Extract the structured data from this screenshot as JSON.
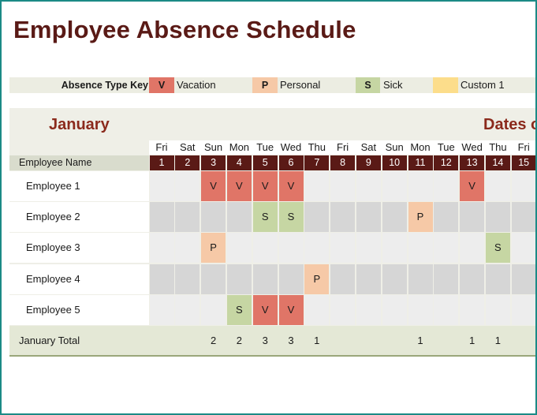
{
  "title": "Employee Absence Schedule",
  "key": {
    "label": "Absence Type Key",
    "items": [
      {
        "code": "V",
        "name": "Vacation",
        "color": "#e07567"
      },
      {
        "code": "P",
        "name": "Personal",
        "color": "#f6c9a7"
      },
      {
        "code": "S",
        "name": "Sick",
        "color": "#c6d6a3"
      },
      {
        "code": "",
        "name": "Custom 1",
        "color": "#fcdd8b"
      }
    ]
  },
  "calendar": {
    "month": "January",
    "dates_heading": "Dates o",
    "employee_header": "Employee Name",
    "days": [
      {
        "dow": "Fri",
        "num": "1"
      },
      {
        "dow": "Sat",
        "num": "2"
      },
      {
        "dow": "Sun",
        "num": "3"
      },
      {
        "dow": "Mon",
        "num": "4"
      },
      {
        "dow": "Tue",
        "num": "5"
      },
      {
        "dow": "Wed",
        "num": "6"
      },
      {
        "dow": "Thu",
        "num": "7"
      },
      {
        "dow": "Fri",
        "num": "8"
      },
      {
        "dow": "Sat",
        "num": "9"
      },
      {
        "dow": "Sun",
        "num": "10"
      },
      {
        "dow": "Mon",
        "num": "11"
      },
      {
        "dow": "Tue",
        "num": "12"
      },
      {
        "dow": "Wed",
        "num": "13"
      },
      {
        "dow": "Thu",
        "num": "14"
      },
      {
        "dow": "Fri",
        "num": "15"
      }
    ],
    "employees": [
      {
        "name": "Employee 1",
        "absences": [
          "",
          "",
          "V",
          "V",
          "V",
          "V",
          "",
          "",
          "",
          "",
          "",
          "",
          "V",
          "",
          ""
        ]
      },
      {
        "name": "Employee 2",
        "absences": [
          "",
          "",
          "",
          "",
          "S",
          "S",
          "",
          "",
          "",
          "",
          "P",
          "",
          "",
          "",
          ""
        ]
      },
      {
        "name": "Employee 3",
        "absences": [
          "",
          "",
          "P",
          "",
          "",
          "",
          "",
          "",
          "",
          "",
          "",
          "",
          "",
          "S",
          ""
        ]
      },
      {
        "name": "Employee 4",
        "absences": [
          "",
          "",
          "",
          "",
          "",
          "",
          "P",
          "",
          "",
          "",
          "",
          "",
          "",
          "",
          ""
        ]
      },
      {
        "name": "Employee 5",
        "absences": [
          "",
          "",
          "",
          "S",
          "V",
          "V",
          "",
          "",
          "",
          "",
          "",
          "",
          "",
          "",
          ""
        ]
      }
    ],
    "total_label": "January Total",
    "totals": [
      "",
      "",
      "2",
      "2",
      "3",
      "3",
      "1",
      "",
      "",
      "",
      "1",
      "",
      "1",
      "1",
      ""
    ]
  },
  "colors": {
    "vacation": "#e07567",
    "personal": "#f6c9a7",
    "sick": "#c6d6a3",
    "custom": "#fcdd8b",
    "header_dark": "#5a1a16",
    "accent_text": "#8b2a1c",
    "row_light": "#ededed",
    "row_dark": "#d6d6d6"
  }
}
